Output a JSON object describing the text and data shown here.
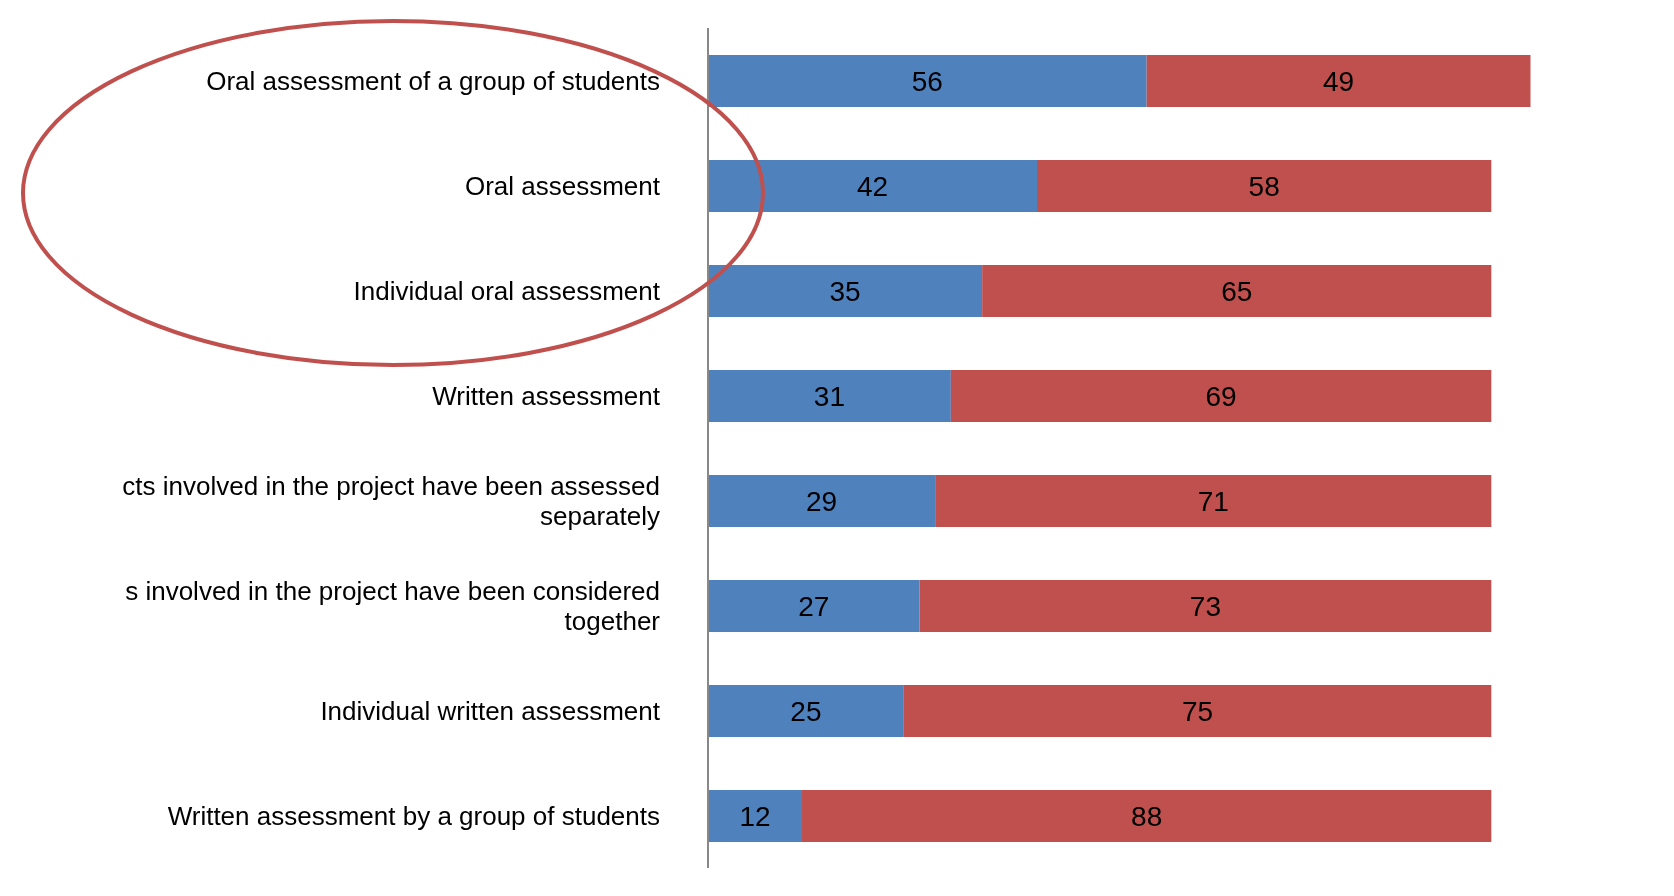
{
  "chart_data": {
    "type": "bar",
    "orientation": "horizontal",
    "stacked": true,
    "data_labels": true,
    "categories": [
      "Oral assessment of a group of students",
      "Oral assessment",
      "Individual oral assessment",
      "Written assessment",
      "cts involved in the project have been assessed separately",
      "s involved in the project have been considered together",
      "Individual written assessment",
      "Written assessment by a group of students"
    ],
    "series": [
      {
        "color": "#4f81bd",
        "values": [
          56,
          42,
          35,
          31,
          29,
          27,
          25,
          12
        ]
      },
      {
        "color": "#c0504d",
        "values": [
          49,
          58,
          65,
          69,
          71,
          73,
          75,
          88
        ]
      }
    ]
  }
}
